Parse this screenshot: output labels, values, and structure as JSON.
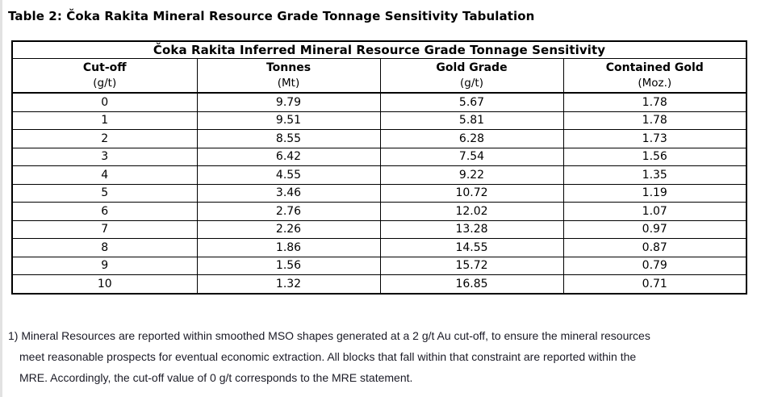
{
  "page": {
    "title": "Table 2: Čoka Rakita Mineral Resource Grade Tonnage Sensitivity Tabulation"
  },
  "table": {
    "title": "Čoka Rakita Inferred Mineral Resource Grade Tonnage Sensitivity",
    "columns": [
      {
        "label": "Cut-off",
        "unit": "(g/t)"
      },
      {
        "label": "Tonnes",
        "unit": "(Mt)"
      },
      {
        "label": "Gold Grade",
        "unit": "(g/t)"
      },
      {
        "label": "Contained Gold",
        "unit": "(Moz.)"
      }
    ],
    "rows": [
      [
        "0",
        "9.79",
        "5.67",
        "1.78"
      ],
      [
        "1",
        "9.51",
        "5.81",
        "1.78"
      ],
      [
        "2",
        "8.55",
        "6.28",
        "1.73"
      ],
      [
        "3",
        "6.42",
        "7.54",
        "1.56"
      ],
      [
        "4",
        "4.55",
        "9.22",
        "1.35"
      ],
      [
        "5",
        "3.46",
        "10.72",
        "1.19"
      ],
      [
        "6",
        "2.76",
        "12.02",
        "1.07"
      ],
      [
        "7",
        "2.26",
        "13.28",
        "0.97"
      ],
      [
        "8",
        "1.86",
        "14.55",
        "0.87"
      ],
      [
        "9",
        "1.56",
        "15.72",
        "0.79"
      ],
      [
        "10",
        "1.32",
        "16.85",
        "0.71"
      ]
    ]
  },
  "footnote": {
    "lines": [
      "1) Mineral Resources are reported within smoothed MSO shapes generated at a 2 g/t Au cut-off, to ensure the mineral resources",
      "meet reasonable prospects for eventual economic extraction. All blocks that fall within that constraint are reported within the",
      "MRE. Accordingly, the cut-off value of 0 g/t corresponds to the MRE statement."
    ]
  },
  "colors": {
    "border": "#000000",
    "text": "#000000",
    "footnote_text": "#1b1b26",
    "page_edge": "#e2e2e2",
    "background": "#ffffff"
  }
}
